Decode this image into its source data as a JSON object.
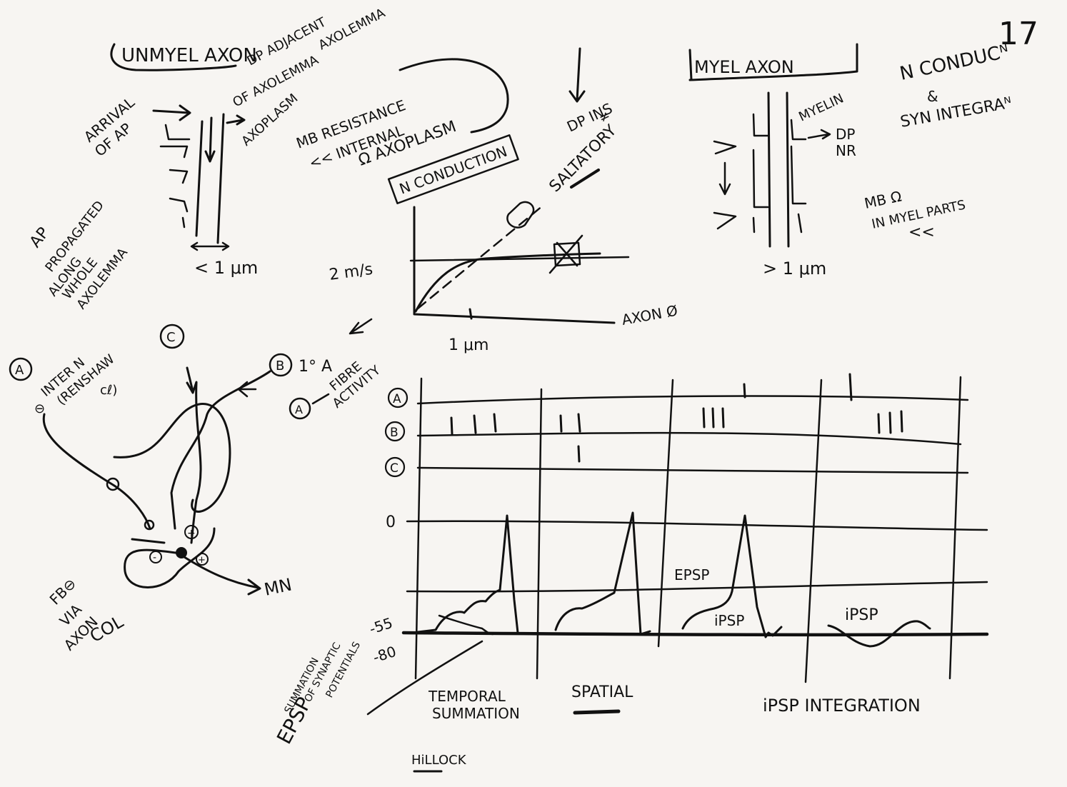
{
  "page": {
    "number": "17"
  },
  "unmyelinated": {
    "title": "UNMYEL AXON",
    "arrival_line1": "ARRIVAL",
    "arrival_line2": "OF AP",
    "dp_line1": "DP ADJACENT",
    "dp_line2": "OF AXOLEMMA",
    "axolemma": "AXOLEMMA",
    "axoplasm": "AXOPLASM",
    "propagated_line1": "AP",
    "propagated_line2": "PROPAGATED",
    "propagated_line3": "ALONG",
    "propagated_line4": "WHOLE",
    "propagated_line5": "AXOLEMMA",
    "size": "< 1 μm"
  },
  "resistance": {
    "line1": "MB RESISTANCE",
    "line2": "<< INTERNAL",
    "line3": "Ω AXOPLASM"
  },
  "dp_ins": {
    "line1": "DP INS",
    "line2": "≠"
  },
  "velocity_graph": {
    "box_label": "N CONDUCTION",
    "saltatory": "SALTATORY",
    "y_tick": "2 m/s",
    "x_tick": "1 μm",
    "x_label": "AXON Ø"
  },
  "myelinated": {
    "title": "MYEL AXON",
    "myelin": "MYELIN",
    "dp_nr_line1": "DP",
    "dp_nr_line2": "NR",
    "size": "> 1 μm"
  },
  "conduction_notes": {
    "line1": "N CONDUCᴺ",
    "line2": "&",
    "line3": "SYN INTEGRAᴺ"
  },
  "mb_myel": {
    "line1": "MB Ω",
    "line2": "IN MYEL PARTS",
    "line3": "<<"
  },
  "circuit": {
    "label_a": "A",
    "label_b": "B",
    "label_c": "C",
    "interneuron_line1": "INTER N",
    "interneuron_line2": "(RENSHAW",
    "interneuron_line3": "cℓ)",
    "minus": "⊖",
    "b_note": "1° A",
    "fibre_line1": "FIBRE",
    "fibre_line2": "ACTIVITY",
    "fibre_a": "A",
    "fb_line1": "FB⊖",
    "fb_line2": "VIA",
    "fb_line3": "AXON",
    "fb_line4": "COL",
    "mn": "MN",
    "plus1": "+",
    "plus2": "+",
    "minus2": "-"
  },
  "traces": {
    "row_a": "A",
    "row_b": "B",
    "row_c": "C",
    "v_zero": "0",
    "v_threshold": "-55",
    "v_rest": "-80",
    "epsp": "EPSP",
    "ipsp1": "iPSP",
    "ipsp2": "iPSP",
    "section_temporal_line1": "TEMPORAL",
    "section_temporal_line2": "SUMMATION",
    "section_spatial": "SPATIAL",
    "section_ipsp": "iPSP INTEGRATION",
    "side_line1": "SUMMATION",
    "side_line2": "OF SYNAPTIC",
    "side_line3": "POTENTIALS",
    "side_epsp": "EPSP",
    "hillock": "HiLLOCK"
  }
}
